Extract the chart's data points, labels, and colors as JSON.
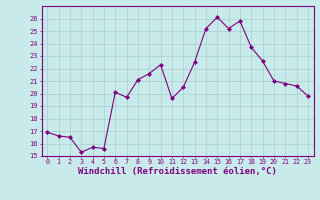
{
  "x": [
    0,
    1,
    2,
    3,
    4,
    5,
    6,
    7,
    8,
    9,
    10,
    11,
    12,
    13,
    14,
    15,
    16,
    17,
    18,
    19,
    20,
    21,
    22,
    23
  ],
  "y": [
    16.9,
    16.6,
    16.5,
    15.3,
    15.7,
    15.6,
    20.1,
    19.7,
    21.1,
    21.6,
    22.3,
    19.6,
    20.5,
    22.5,
    25.2,
    26.1,
    25.2,
    25.8,
    23.7,
    22.6,
    21.0,
    20.8,
    20.6,
    19.8
  ],
  "line_color": "#800080",
  "marker": "D",
  "marker_size": 2,
  "bg_color": "#c8eaea",
  "grid_color": "#a8cece",
  "xlabel": "Windchill (Refroidissement éolien,°C)",
  "xlabel_color": "#800080",
  "xlim": [
    -0.5,
    23.5
  ],
  "ylim": [
    15,
    27
  ],
  "yticks": [
    15,
    16,
    17,
    18,
    19,
    20,
    21,
    22,
    23,
    24,
    25,
    26
  ],
  "xticks": [
    0,
    1,
    2,
    3,
    4,
    5,
    6,
    7,
    8,
    9,
    10,
    11,
    12,
    13,
    14,
    15,
    16,
    17,
    18,
    19,
    20,
    21,
    22,
    23
  ],
  "tick_color": "#800080",
  "spine_color": "#800080"
}
